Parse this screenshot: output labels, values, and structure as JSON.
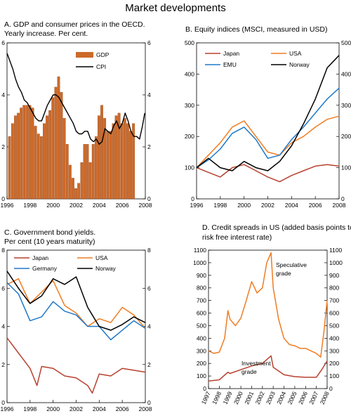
{
  "title": "Market developments",
  "colors": {
    "gdp": "#cc6a2a",
    "cpi": "#000000",
    "japan": "#b7412f",
    "usa": "#f07c22",
    "emu": "#1f78c8",
    "germany": "#1f78c8",
    "norway": "#000000",
    "speculative": "#f07c22",
    "investment": "#b7412f"
  },
  "chart_data": [
    {
      "type": "bar",
      "title": "A. GDP and consumer prices in the OECD.",
      "subtitle": "Yearly increase. Per cent.",
      "xlim": [
        1996,
        2008
      ],
      "ylim": [
        0,
        6
      ],
      "yticks": [
        0,
        2,
        4,
        6
      ],
      "xticks": [
        1996,
        1998,
        2000,
        2002,
        2004,
        2006,
        2008
      ],
      "grid": false,
      "legend_position": "top-right",
      "bar_start": 1996.1,
      "bar_step": 0.25,
      "series": [
        {
          "name": "GDP",
          "type": "bar",
          "values": [
            2.4,
            2.9,
            3.2,
            3.3,
            3.5,
            3.6,
            3.6,
            3.6,
            3.5,
            2.8,
            2.5,
            2.4,
            2.9,
            3.2,
            3.4,
            3.9,
            4.3,
            4.7,
            4.1,
            3.1,
            2.1,
            1.3,
            0.8,
            0.4,
            0.6,
            1.4,
            2.1,
            2.1,
            1.4,
            2.1,
            2.4,
            3.2,
            3.6,
            3.1,
            2.6,
            2.6,
            2.9,
            3.2,
            3.3,
            2.9,
            3.1,
            2.9,
            2.6,
            2.9
          ]
        },
        {
          "name": "CPI",
          "type": "line",
          "x": [
            1996.0,
            1996.25,
            1996.5,
            1996.75,
            1997.0,
            1997.25,
            1997.5,
            1997.75,
            1998.0,
            1998.25,
            1998.5,
            1998.75,
            1999.0,
            1999.25,
            1999.5,
            1999.75,
            2000.0,
            2000.25,
            2000.5,
            2000.75,
            2001.0,
            2001.25,
            2001.5,
            2001.75,
            2002.0,
            2002.25,
            2002.5,
            2002.75,
            2003.0,
            2003.25,
            2003.5,
            2003.75,
            2004.0,
            2004.25,
            2004.5,
            2004.75,
            2005.0,
            2005.25,
            2005.5,
            2005.75,
            2006.0,
            2006.25,
            2006.5,
            2006.75,
            2007.0,
            2007.25,
            2007.5,
            2007.75,
            2007.95
          ],
          "y": [
            5.6,
            5.3,
            5.0,
            4.6,
            4.3,
            4.1,
            3.8,
            3.7,
            3.5,
            3.3,
            3.1,
            3.0,
            3.0,
            3.3,
            3.6,
            3.8,
            4.0,
            4.0,
            3.9,
            3.7,
            3.5,
            3.3,
            3.1,
            2.9,
            2.6,
            2.5,
            2.5,
            2.6,
            2.6,
            2.3,
            2.2,
            2.3,
            2.1,
            2.2,
            2.7,
            2.6,
            2.5,
            2.8,
            3.0,
            2.7,
            2.9,
            3.3,
            3.0,
            2.6,
            2.4,
            2.4,
            2.3,
            2.8,
            3.3
          ]
        }
      ]
    },
    {
      "type": "line",
      "title": "B. Equity indices (MSCI, measured in USD)",
      "xlim": [
        1996,
        2008
      ],
      "ylim": [
        0,
        500
      ],
      "yticks": [
        0,
        100,
        200,
        300,
        400,
        500
      ],
      "xticks": [
        1996,
        1998,
        2000,
        2002,
        2004,
        2006,
        2008
      ],
      "grid": false,
      "legend_position": "top",
      "series": [
        {
          "name": "Japan",
          "color_key": "japan",
          "x": [
            1996,
            1997,
            1998,
            1999,
            2000,
            2001,
            2002,
            2003,
            2004,
            2005,
            2006,
            2007,
            2008
          ],
          "y": [
            100,
            85,
            70,
            100,
            110,
            90,
            70,
            55,
            75,
            90,
            105,
            110,
            105
          ]
        },
        {
          "name": "USA",
          "color_key": "usa",
          "x": [
            1996,
            1997,
            1998,
            1999,
            2000,
            2001,
            2002,
            2003,
            2004,
            2005,
            2006,
            2007,
            2008
          ],
          "y": [
            100,
            140,
            180,
            230,
            250,
            200,
            150,
            140,
            180,
            200,
            230,
            255,
            265
          ]
        },
        {
          "name": "EMU",
          "color_key": "emu",
          "x": [
            1996,
            1997,
            1998,
            1999,
            2000,
            2001,
            2002,
            2003,
            2004,
            2005,
            2006,
            2007,
            2008
          ],
          "y": [
            100,
            125,
            160,
            210,
            230,
            190,
            130,
            140,
            190,
            230,
            275,
            320,
            355
          ]
        },
        {
          "name": "Norway",
          "color_key": "norway",
          "x": [
            1996,
            1997,
            1998,
            1999,
            2000,
            2001,
            2002,
            2003,
            2004,
            2005,
            2006,
            2007,
            2008
          ],
          "y": [
            100,
            130,
            100,
            90,
            120,
            100,
            90,
            120,
            170,
            240,
            320,
            420,
            460
          ]
        }
      ]
    },
    {
      "type": "line",
      "title": "C. Government bond yields.",
      "subtitle": "Per cent (10 years maturity)",
      "xlim": [
        1996,
        2008
      ],
      "ylim": [
        0,
        8
      ],
      "yticks": [
        0,
        2,
        4,
        6,
        8
      ],
      "xticks": [
        1996,
        1998,
        2000,
        2002,
        2004,
        2006,
        2008
      ],
      "grid": false,
      "legend_position": "top",
      "series": [
        {
          "name": "Japan",
          "color_key": "japan",
          "x": [
            1996,
            1997,
            1998,
            1998.6,
            1999,
            2000,
            2001,
            2002,
            2003,
            2003.4,
            2004,
            2005,
            2006,
            2007,
            2008
          ],
          "y": [
            3.4,
            2.6,
            1.8,
            0.9,
            1.9,
            1.8,
            1.4,
            1.3,
            0.9,
            0.5,
            1.5,
            1.4,
            1.8,
            1.7,
            1.6
          ]
        },
        {
          "name": "USA",
          "color_key": "usa",
          "x": [
            1996,
            1997,
            1998,
            1999,
            2000,
            2001,
            2002,
            2003,
            2004,
            2005,
            2006,
            2007,
            2008
          ],
          "y": [
            6.2,
            6.5,
            5.2,
            5.8,
            6.4,
            5.1,
            4.7,
            4.0,
            4.4,
            4.2,
            5.0,
            4.6,
            3.9
          ]
        },
        {
          "name": "Germany",
          "color_key": "germany",
          "x": [
            1996,
            1997,
            1998,
            1999,
            2000,
            2001,
            2002,
            2003,
            2004,
            2005,
            2006,
            2007,
            2008
          ],
          "y": [
            6.3,
            5.7,
            4.3,
            4.5,
            5.3,
            4.8,
            4.6,
            4.0,
            4.0,
            3.3,
            3.8,
            4.3,
            3.9
          ]
        },
        {
          "name": "Norway",
          "color_key": "norway",
          "x": [
            1996,
            1997,
            1998,
            1999,
            2000,
            2001,
            2002,
            2003,
            2004,
            2005,
            2006,
            2007,
            2008
          ],
          "y": [
            6.9,
            6.0,
            5.2,
            5.6,
            6.5,
            6.2,
            6.6,
            5.0,
            4.0,
            3.8,
            4.1,
            4.5,
            4.2
          ]
        }
      ]
    },
    {
      "type": "line",
      "title": "D. Credit spreads in US (added basis points to",
      "subtitle": "risk free interest rate)",
      "xlim": [
        1997,
        2008
      ],
      "ylim": [
        0,
        1100
      ],
      "yticks": [
        0,
        100,
        200,
        300,
        400,
        500,
        600,
        700,
        800,
        900,
        1000,
        1100
      ],
      "xticks": [
        1997,
        1998,
        1999,
        2000,
        2001,
        2002,
        2003,
        2004,
        2005,
        2006,
        2007,
        2008
      ],
      "grid": false,
      "annotations": [
        "Speculative grade",
        "Investment grade"
      ],
      "series": [
        {
          "label": "Speculative grade",
          "color_key": "speculative",
          "x": [
            1997,
            1997.5,
            1998,
            1998.5,
            1998.8,
            1999,
            1999.5,
            2000,
            2000.5,
            2001,
            2001.5,
            2002,
            2002.4,
            2002.8,
            2003,
            2003.5,
            2004,
            2004.5,
            2005,
            2005.5,
            2006,
            2006.5,
            2007,
            2007.4,
            2007.7,
            2008
          ],
          "y": [
            300,
            280,
            290,
            400,
            620,
            550,
            500,
            560,
            700,
            850,
            760,
            800,
            1000,
            1080,
            800,
            550,
            400,
            350,
            340,
            320,
            320,
            300,
            280,
            250,
            450,
            700
          ]
        },
        {
          "label": "Investment grade",
          "color_key": "investment",
          "x": [
            1997,
            1998,
            1998.8,
            1999,
            2000,
            2001,
            2002,
            2002.8,
            2003,
            2004,
            2005,
            2006,
            2007,
            2007.5,
            2008
          ],
          "y": [
            60,
            70,
            130,
            120,
            150,
            180,
            200,
            260,
            170,
            110,
            95,
            90,
            90,
            150,
            220
          ]
        }
      ]
    }
  ]
}
